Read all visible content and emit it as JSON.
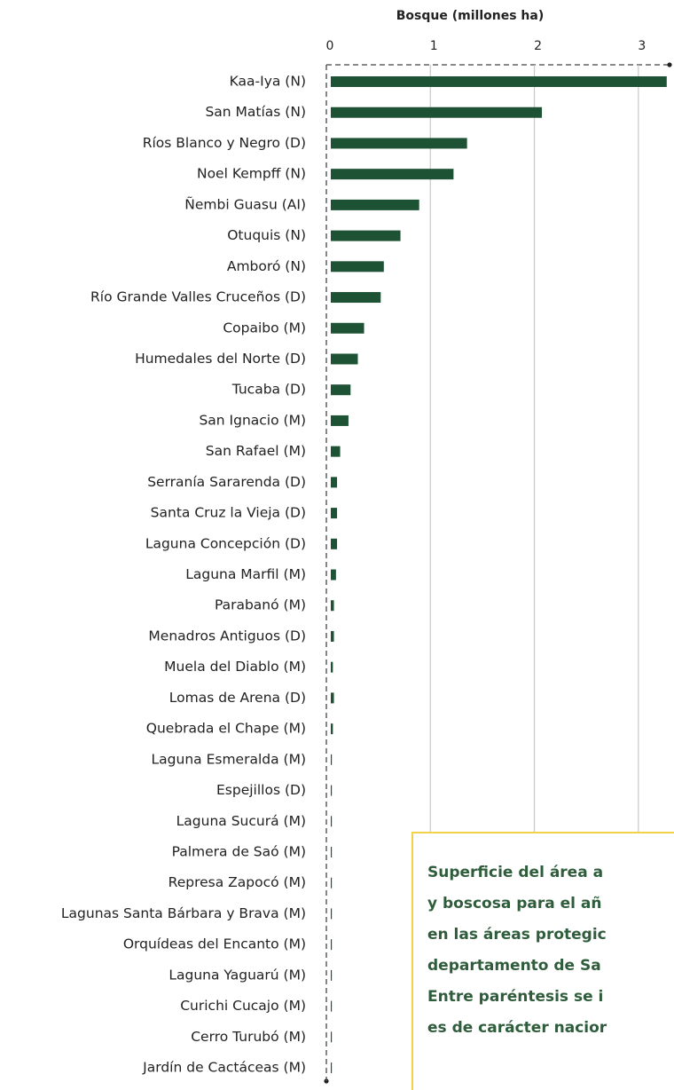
{
  "chart_data": {
    "type": "barh",
    "x_label": "Bosque (millones ha)",
    "categories": [
      "Kaa-Iya (N)",
      "San Matías (N)",
      "Ríos Blanco y Negro (D)",
      "Noel Kempff (N)",
      "Ñembi Guasu (AI)",
      "Otuquis (N)",
      "Amboró (N)",
      "Río Grande Valles Cruceños (D)",
      "Copaibo (M)",
      "Humedales del Norte (D)",
      "Tucaba (D)",
      "San Ignacio (M)",
      "San Rafael (M)",
      "Serranía Sararenda (D)",
      "Santa Cruz la Vieja (D)",
      "Laguna Concepción (D)",
      "Laguna Marfil (M)",
      "Parabanó (M)",
      "Menadros Antiguos (D)",
      "Muela del Diablo (M)",
      "Lomas de Arena (D)",
      "Quebrada el Chape (M)",
      "Laguna Esmeralda (M)",
      "Espejillos (D)",
      "Laguna Sucurá (M)",
      "Palmera de Saó (M)",
      "Represa Zapocó (M)",
      "Lagunas Santa Bárbara y Brava (M)",
      "Orquídeas del Encanto (M)",
      "Laguna Yaguarú (M)",
      "Curichi Cucajo (M)",
      "Cerro Turubó (M)",
      "Jardín de Cactáceas (M)"
    ],
    "values": [
      3.23,
      2.03,
      1.31,
      1.18,
      0.85,
      0.67,
      0.51,
      0.48,
      0.32,
      0.26,
      0.19,
      0.17,
      0.09,
      0.06,
      0.06,
      0.06,
      0.05,
      0.03,
      0.03,
      0.02,
      0.03,
      0.02,
      0.01,
      0.01,
      0.01,
      0.01,
      0.01,
      0.01,
      0.01,
      0.01,
      0.01,
      0.01,
      0.01
    ],
    "color": "#1e5234",
    "xlim": [
      0,
      3.3
    ],
    "xticks": [
      0,
      1,
      2,
      3
    ],
    "grid": true,
    "annotation": [
      "Superficie del área a",
      "y boscosa para el añ",
      "en las áreas protegic",
      "departamento de Sa",
      "Entre paréntesis se i",
      "es de carácter nacior"
    ]
  }
}
